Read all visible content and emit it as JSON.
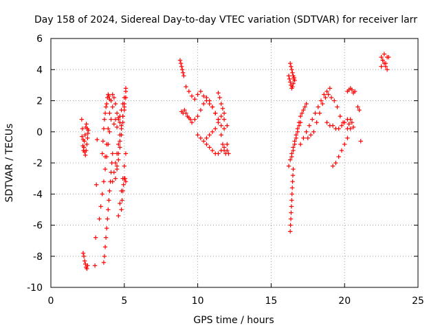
{
  "chart_data": {
    "type": "scatter",
    "title": "Day 158 of 2024, Sidereal Day-to-day VTEC variation (SDTVAR) for receiver larr",
    "xlabel": "GPS time / hours",
    "ylabel": "SDTVAR / TECUs",
    "xlim": [
      0,
      25
    ],
    "ylim": [
      -10,
      6
    ],
    "xticks": [
      "0",
      "5",
      "10",
      "15",
      "20",
      "25"
    ],
    "yticks": [
      "-10",
      "-8",
      "-6",
      "-4",
      "-2",
      "0",
      "2",
      "4",
      "6"
    ],
    "grid": true,
    "marker": "plus",
    "color": "#ff0000",
    "series": [
      {
        "x": [
          2.1,
          2.15,
          2.2,
          2.25,
          2.3,
          2.35,
          2.4,
          2.45,
          2.5,
          2.55,
          2.12,
          2.18,
          2.22,
          2.28,
          2.33,
          2.38,
          2.42,
          2.48,
          2.52,
          2.2,
          2.25,
          2.3,
          2.35,
          2.4,
          2.45,
          2.5,
          3.0,
          3.05,
          3.1,
          3.15,
          3.3,
          3.4,
          3.5,
          3.6,
          3.7,
          3.8,
          3.9,
          4.0,
          4.1,
          4.2,
          3.6,
          3.65,
          3.7,
          3.75,
          3.8,
          3.85,
          3.9,
          3.95,
          4.0,
          4.05,
          4.1,
          4.15,
          4.2,
          3.7,
          3.8,
          3.9,
          4.0,
          4.1,
          4.2,
          4.3,
          4.4,
          4.5,
          4.6,
          4.7,
          4.8,
          4.9,
          5.0,
          5.1,
          4.2,
          4.3,
          4.4,
          4.5,
          4.6,
          4.7,
          4.8,
          4.9,
          5.0,
          5.1,
          4.4,
          4.5,
          4.6,
          4.7,
          4.8,
          4.9,
          5.0,
          5.1,
          4.5,
          4.6,
          4.7,
          4.8,
          4.9,
          5.0,
          5.1,
          4.6,
          4.7,
          4.8,
          4.9,
          5.0,
          5.1,
          4.8,
          4.85,
          4.9,
          4.95,
          5.0,
          5.05,
          5.1,
          4.3,
          4.4,
          4.5,
          4.6,
          4.7,
          3.5,
          3.55,
          3.6,
          3.65,
          3.7,
          3.75,
          3.8,
          3.85,
          3.9,
          3.95,
          4.0,
          8.8,
          8.85,
          8.9,
          8.95,
          9.0,
          9.05,
          8.9,
          9.0,
          9.1,
          9.2,
          9.3,
          9.4,
          9.5,
          9.2,
          9.4,
          9.6,
          9.8,
          10.0,
          10.2,
          10.4,
          10.6,
          10.8,
          11.0,
          11.2,
          11.4,
          9.6,
          9.8,
          10.0,
          10.2,
          10.4,
          10.6,
          10.8,
          11.0,
          11.2,
          11.4,
          11.6,
          11.8,
          10.0,
          10.2,
          10.4,
          10.6,
          10.8,
          11.0,
          11.2,
          11.4,
          11.6,
          11.8,
          12.0,
          10.6,
          10.8,
          11.0,
          11.2,
          11.4,
          11.6,
          11.8,
          12.0,
          11.6,
          11.7,
          11.8,
          11.9,
          12.0,
          12.1,
          11.4,
          11.5,
          11.6,
          11.7,
          11.8,
          16.2,
          16.25,
          16.3,
          16.35,
          16.4,
          16.45,
          16.5,
          16.55,
          16.3,
          16.35,
          16.4,
          16.45,
          16.5,
          16.55,
          16.6,
          16.2,
          16.3,
          16.4,
          16.5,
          16.6,
          16.7,
          16.8,
          16.9,
          17.0,
          17.1,
          17.2,
          17.3,
          17.4,
          16.4,
          16.5,
          16.6,
          16.7,
          16.8,
          16.9,
          17.0,
          16.3,
          16.32,
          16.34,
          16.36,
          16.38,
          16.4,
          16.42,
          16.44,
          16.46,
          16.48,
          16.5,
          17.0,
          17.2,
          17.4,
          17.6,
          17.8,
          18.0,
          18.2,
          18.4,
          18.6,
          18.8,
          19.0,
          17.5,
          17.7,
          17.9,
          18.1,
          18.3,
          18.5,
          18.7,
          18.9,
          19.1,
          19.3,
          19.5,
          19.7,
          19.9,
          18.8,
          19.0,
          19.2,
          19.4,
          19.6,
          19.8,
          20.0,
          20.2,
          19.2,
          19.4,
          19.6,
          19.8,
          20.0,
          20.2,
          20.4,
          20.2,
          20.3,
          20.4,
          20.5,
          20.6,
          20.7,
          20.2,
          20.3,
          20.4,
          20.5,
          20.6,
          20.9,
          21.0,
          21.1,
          22.5,
          22.6,
          22.7,
          22.8,
          22.9,
          23.0,
          22.5,
          22.6,
          22.7,
          22.8,
          22.9
        ],
        "y": [
          0.8,
          0.2,
          -0.5,
          -1.0,
          -1.3,
          -1.5,
          -1.2,
          -0.8,
          -0.4,
          0.1,
          -0.3,
          -0.9,
          -1.2,
          -0.6,
          -0.2,
          0.3,
          0.5,
          0.2,
          -0.1,
          -7.8,
          -8.0,
          -8.3,
          -8.5,
          -8.7,
          -8.8,
          -8.6,
          -8.6,
          -6.8,
          -3.4,
          -0.5,
          -5.6,
          -4.8,
          -4.0,
          -3.2,
          -2.4,
          -1.6,
          -0.8,
          0.0,
          0.8,
          1.6,
          -8.4,
          -8.0,
          -7.4,
          -6.8,
          -6.2,
          -5.6,
          -5.0,
          -4.4,
          -3.8,
          -3.2,
          -2.6,
          -2.0,
          -1.4,
          -1.6,
          -0.8,
          0.2,
          1.2,
          2.0,
          2.4,
          2.2,
          1.8,
          1.2,
          0.8,
          1.0,
          1.4,
          1.8,
          2.2,
          2.8,
          -3.2,
          -2.6,
          -2.0,
          -1.4,
          -0.8,
          -0.2,
          0.4,
          1.0,
          1.6,
          2.2,
          -3.0,
          -2.2,
          -1.4,
          -0.6,
          0.2,
          1.0,
          1.8,
          2.6,
          -2.4,
          -1.8,
          -1.0,
          -0.2,
          0.6,
          1.4,
          2.2,
          -5.4,
          -4.6,
          -3.8,
          -3.0,
          -2.2,
          -1.4,
          -5.0,
          -4.4,
          -3.8,
          -3.4,
          -3.0,
          -3.0,
          -3.2,
          0.5,
          0.8,
          0.3,
          0.9,
          0.6,
          -1.4,
          -0.6,
          0.2,
          0.8,
          1.2,
          1.6,
          1.8,
          2.2,
          2.4,
          2.3,
          2.1,
          4.6,
          4.4,
          4.2,
          4.0,
          3.8,
          3.6,
          1.3,
          1.2,
          1.4,
          1.2,
          1.0,
          0.9,
          0.8,
          2.9,
          2.6,
          2.3,
          2.1,
          2.4,
          2.6,
          2.3,
          2.0,
          1.8,
          1.6,
          1.2,
          0.8,
          0.6,
          0.8,
          1.0,
          1.4,
          1.8,
          2.2,
          2.0,
          1.6,
          1.2,
          0.8,
          0.4,
          0.2,
          -0.2,
          -0.4,
          -0.6,
          -0.8,
          -1.0,
          -1.2,
          -1.4,
          -1.4,
          -1.2,
          -1.0,
          -0.8,
          -0.4,
          -0.2,
          0.0,
          0.2,
          0.6,
          1.0,
          0.8,
          0.4,
          -0.2,
          -0.8,
          -1.2,
          -1.4,
          -1.2,
          -1.4,
          2.5,
          2.2,
          1.8,
          1.5,
          1.2,
          3.6,
          3.4,
          3.2,
          3.0,
          2.8,
          2.9,
          3.1,
          3.4,
          4.4,
          4.2,
          4.0,
          3.8,
          3.6,
          3.5,
          3.3,
          -2.2,
          -1.8,
          -1.4,
          -1.0,
          -0.6,
          -0.2,
          0.2,
          0.6,
          1.0,
          1.2,
          1.4,
          1.6,
          1.8,
          -1.6,
          -1.2,
          -0.8,
          -0.4,
          0.0,
          0.4,
          0.6,
          -6.4,
          -6.0,
          -5.6,
          -5.2,
          -4.8,
          -4.4,
          -4.0,
          -3.6,
          -3.2,
          -2.8,
          -2.4,
          -0.8,
          -0.4,
          0.0,
          0.4,
          0.8,
          1.2,
          1.6,
          2.0,
          2.4,
          2.6,
          2.8,
          -0.4,
          -0.2,
          0.0,
          0.6,
          1.2,
          1.8,
          2.2,
          2.4,
          2.2,
          2.0,
          1.6,
          1.0,
          0.6,
          0.6,
          0.4,
          0.4,
          0.2,
          0.2,
          0.4,
          0.6,
          0.8,
          -2.2,
          -2.0,
          -1.6,
          -1.2,
          -0.8,
          -0.4,
          0.2,
          2.6,
          2.7,
          2.8,
          2.7,
          2.5,
          2.6,
          0.2,
          0.5,
          0.8,
          0.6,
          0.3,
          1.6,
          1.4,
          -0.6,
          4.8,
          4.6,
          4.4,
          4.2,
          4.0,
          4.8,
          4.2,
          4.6,
          5.0,
          4.4,
          4.8
        ]
      }
    ]
  }
}
